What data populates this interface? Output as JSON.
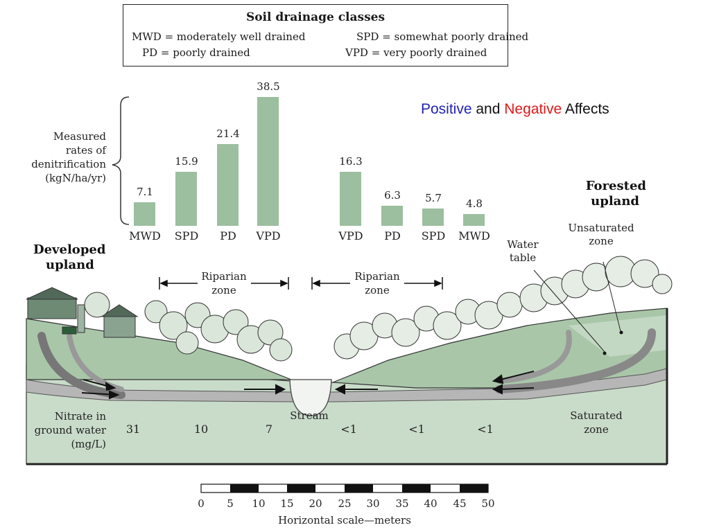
{
  "legend": {
    "title": "Soil drainage classes",
    "entries": [
      {
        "abbr": "MWD",
        "meaning": "moderately well drained"
      },
      {
        "abbr": "PD",
        "meaning": "poorly drained"
      },
      {
        "abbr": "SPD",
        "meaning": "somewhat poorly drained"
      },
      {
        "abbr": "VPD",
        "meaning": "very poorly drained"
      }
    ]
  },
  "slide_title": {
    "positive": "Positive",
    "and": "and",
    "negative": "Negative",
    "rest": "Affects"
  },
  "colors": {
    "positive": "#2222b8",
    "negative": "#e01818",
    "bar": "#9cbf9f",
    "ground": "#c9dbc9",
    "water_table": "#b6b6b6"
  },
  "denitrification": {
    "label": [
      "Measured",
      "rates of",
      "denitrification",
      "(kgN/ha/yr)"
    ],
    "left_bars": [
      {
        "class": "MWD",
        "value": "7.1"
      },
      {
        "class": "SPD",
        "value": "15.9"
      },
      {
        "class": "PD",
        "value": "21.4"
      },
      {
        "class": "VPD",
        "value": "38.5"
      }
    ],
    "right_bars": [
      {
        "class": "VPD",
        "value": "16.3"
      },
      {
        "class": "PD",
        "value": "6.3"
      },
      {
        "class": "SPD",
        "value": "5.7"
      },
      {
        "class": "MWD",
        "value": "4.8"
      }
    ]
  },
  "landscape": {
    "developed_upland": [
      "Developed",
      "upland"
    ],
    "forested_upland": [
      "Forested",
      "upland"
    ],
    "riparian_left": [
      "Riparian",
      "zone"
    ],
    "riparian_right": [
      "Riparian",
      "zone"
    ],
    "water_table": [
      "Water",
      "table"
    ],
    "unsaturated_zone": [
      "Unsaturated",
      "zone"
    ],
    "saturated_zone": [
      "Saturated",
      "zone"
    ],
    "stream": "Stream",
    "nitrate_label": [
      "Nitrate in",
      "ground water",
      "(mg/L)"
    ],
    "nitrate_values": [
      "31",
      "10",
      "7",
      "<1",
      "<1",
      "<1"
    ]
  },
  "scale": {
    "ticks": [
      "0",
      "5",
      "10",
      "15",
      "20",
      "25",
      "30",
      "35",
      "40",
      "45",
      "50"
    ],
    "caption": "Horizontal scale—meters"
  }
}
